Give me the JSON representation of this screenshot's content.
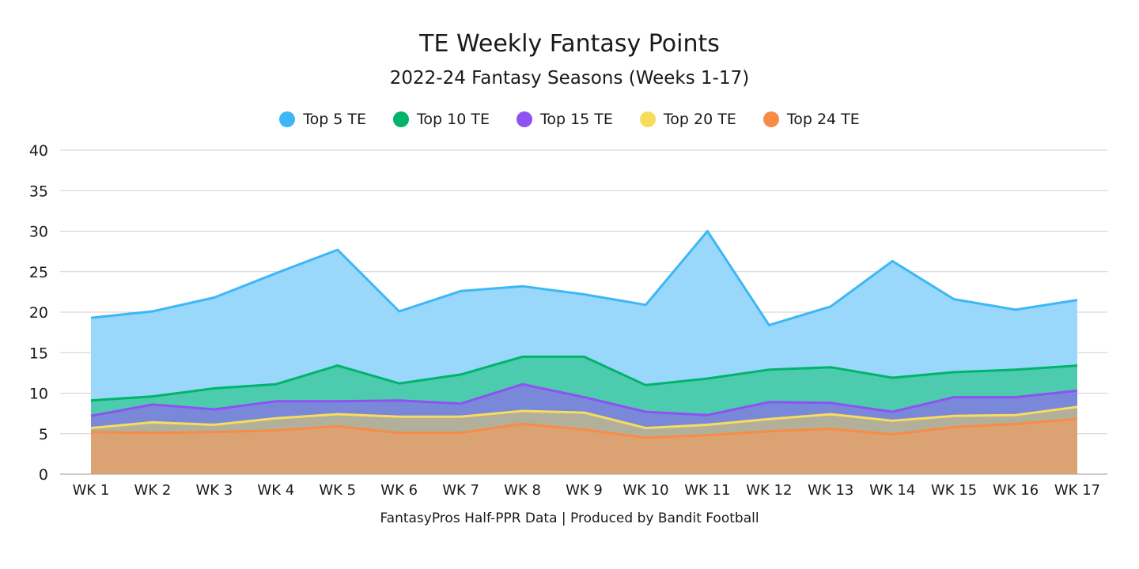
{
  "chart_data": {
    "type": "area",
    "title": "TE Weekly Fantasy Points",
    "subtitle": "2022-24 Fantasy Seasons (Weeks 1-17)",
    "footer": "FantasyPros Half-PPR Data | Produced by Bandit Football",
    "categories": [
      "WK 1",
      "WK 2",
      "WK 3",
      "WK 4",
      "WK 5",
      "WK 6",
      "WK 7",
      "WK 8",
      "WK 9",
      "WK 10",
      "WK 11",
      "WK 12",
      "WK 13",
      "WK 14",
      "WK 15",
      "WK 16",
      "WK 17"
    ],
    "ylim": [
      0,
      40
    ],
    "yticks": [
      0,
      5,
      10,
      15,
      20,
      25,
      30,
      35,
      40
    ],
    "grid": true,
    "legend_position": "top",
    "series": [
      {
        "name": "Top 5 TE",
        "color": "#3db7f5",
        "fill": "#9ad8fb",
        "values": [
          19.3,
          20.1,
          21.8,
          24.8,
          27.7,
          20.1,
          22.6,
          23.2,
          22.2,
          20.9,
          30.0,
          18.4,
          20.7,
          26.3,
          21.6,
          20.3,
          21.5
        ]
      },
      {
        "name": "Top 10 TE",
        "color": "#00b469",
        "fill": "#4ccbae",
        "values": [
          9.1,
          9.6,
          10.6,
          11.1,
          13.4,
          11.2,
          12.3,
          14.5,
          14.5,
          11.0,
          11.8,
          12.9,
          13.2,
          11.9,
          12.6,
          12.9,
          13.4
        ]
      },
      {
        "name": "Top 15 TE",
        "color": "#8e52f2",
        "fill": "#7a88d9",
        "values": [
          7.2,
          8.6,
          8.0,
          9.0,
          9.0,
          9.1,
          8.7,
          11.1,
          9.5,
          7.7,
          7.3,
          8.9,
          8.8,
          7.7,
          9.5,
          9.5,
          10.3
        ]
      },
      {
        "name": "Top 20 TE",
        "color": "#f8dc5e",
        "fill": "#b2b09a",
        "values": [
          5.7,
          6.4,
          6.1,
          6.9,
          7.4,
          7.1,
          7.1,
          7.8,
          7.6,
          5.7,
          6.1,
          6.8,
          7.4,
          6.6,
          7.2,
          7.3,
          8.3
        ]
      },
      {
        "name": "Top 24 TE",
        "color": "#f88b45",
        "fill": "#dba373",
        "values": [
          5.2,
          5.1,
          5.2,
          5.4,
          5.9,
          5.1,
          5.1,
          6.2,
          5.5,
          4.5,
          4.8,
          5.3,
          5.6,
          4.9,
          5.8,
          6.2,
          6.8
        ]
      }
    ]
  }
}
